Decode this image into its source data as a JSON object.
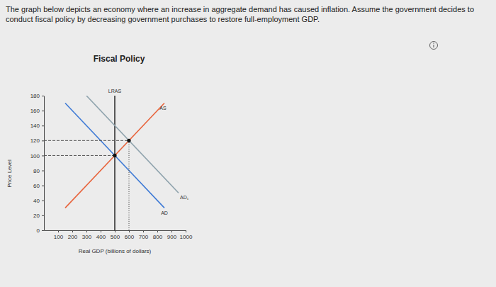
{
  "chart_data": {
    "type": "line",
    "title": "Fiscal Policy",
    "subtitle": "The graph below depicts an economy where an increase in aggregate demand has caused inflation. Assume the government decides to conduct fiscal policy by decreasing government purchases to restore full-employment GDP.",
    "x_label": "Real GDP (billions of dollars)",
    "y_label": "Price Level",
    "xlim": [
      0,
      1000
    ],
    "xticks": [
      100,
      200,
      300,
      400,
      500,
      600,
      700,
      800,
      900,
      1000
    ],
    "ylim": [
      0,
      180
    ],
    "yticks": [
      0,
      20,
      40,
      60,
      80,
      100,
      120,
      140,
      160,
      180
    ],
    "series": [
      {
        "name": "LRAS",
        "color": "#333333",
        "x": [
          500,
          500
        ],
        "values": [
          0,
          180
        ]
      },
      {
        "name": "AS",
        "color": "#e8643c",
        "x": [
          150,
          850
        ],
        "values": [
          30,
          170
        ]
      },
      {
        "name": "AD",
        "color": "#3f7bd6",
        "x": [
          150,
          850
        ],
        "values": [
          170,
          30
        ]
      },
      {
        "name": "AD₁",
        "color": "#8fa3ad",
        "x": [
          300,
          950
        ],
        "values": [
          180,
          50
        ]
      },
      {
        "color": "#555555",
        "line_style": "dashed",
        "x": [
          0,
          500
        ],
        "values": [
          100,
          100
        ]
      },
      {
        "color": "#555555",
        "line_style": "dashed",
        "x": [
          0,
          600
        ],
        "values": [
          120,
          120
        ]
      },
      {
        "color": "#555555",
        "line_style": "dotted",
        "x": [
          600,
          600
        ],
        "values": [
          0,
          120
        ]
      },
      {
        "type": "scatter",
        "color": "#111111",
        "marker": "circle",
        "x": [
          500,
          600
        ],
        "values": [
          100,
          120
        ]
      }
    ]
  }
}
